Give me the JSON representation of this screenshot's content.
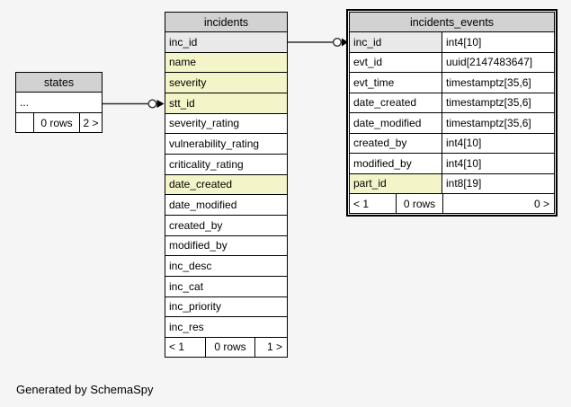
{
  "colors": {
    "background": "#f5f5f5",
    "header_bg": "#d2d2d2",
    "indexed_bg": "#e9e9e9",
    "implied_bg": "#f4f4c9",
    "row_bg": "#ffffff",
    "border": "#000000",
    "connector": "#2e2e2e"
  },
  "tables": {
    "states": {
      "title": "states",
      "columns": [
        {
          "name": "...",
          "style": "plain"
        }
      ],
      "footer": {
        "left": "",
        "center": "0 rows",
        "right": "2 >"
      }
    },
    "incidents": {
      "title": "incidents",
      "columns": [
        {
          "name": "inc_id",
          "style": "indexed"
        },
        {
          "name": "name",
          "style": "implied"
        },
        {
          "name": "severity",
          "style": "implied"
        },
        {
          "name": "stt_id",
          "style": "implied"
        },
        {
          "name": "severity_rating",
          "style": "plain"
        },
        {
          "name": "vulnerability_rating",
          "style": "plain"
        },
        {
          "name": "criticality_rating",
          "style": "plain"
        },
        {
          "name": "date_created",
          "style": "implied"
        },
        {
          "name": "date_modified",
          "style": "plain"
        },
        {
          "name": "created_by",
          "style": "plain"
        },
        {
          "name": "modified_by",
          "style": "plain"
        },
        {
          "name": "inc_desc",
          "style": "plain"
        },
        {
          "name": "inc_cat",
          "style": "plain"
        },
        {
          "name": "inc_priority",
          "style": "plain"
        },
        {
          "name": "inc_res",
          "style": "plain"
        }
      ],
      "footer": {
        "left": "< 1",
        "center": "0 rows",
        "right": "1 >"
      }
    },
    "incidents_events": {
      "title": "incidents_events",
      "columns": [
        {
          "name": "inc_id",
          "type": "int4[10]",
          "style": "indexed"
        },
        {
          "name": "evt_id",
          "type": "uuid[2147483647]",
          "style": "plain"
        },
        {
          "name": "evt_time",
          "type": "timestamptz[35,6]",
          "style": "plain"
        },
        {
          "name": "date_created",
          "type": "timestamptz[35,6]",
          "style": "plain"
        },
        {
          "name": "date_modified",
          "type": "timestamptz[35,6]",
          "style": "plain"
        },
        {
          "name": "created_by",
          "type": "int4[10]",
          "style": "plain"
        },
        {
          "name": "modified_by",
          "type": "int4[10]",
          "style": "plain"
        },
        {
          "name": "part_id",
          "type": "int8[19]",
          "style": "implied"
        }
      ],
      "footer": {
        "left": "< 1",
        "center": "0 rows",
        "right": "0 >"
      }
    }
  },
  "relationships": [
    {
      "parent": "states",
      "child": "incidents.stt_id",
      "child_marker": "circle-arrow"
    },
    {
      "parent": "incidents.inc_id",
      "child": "incidents_events.inc_id",
      "child_marker": "circle-arrow"
    }
  ],
  "footer_note": "Generated by SchemaSpy"
}
